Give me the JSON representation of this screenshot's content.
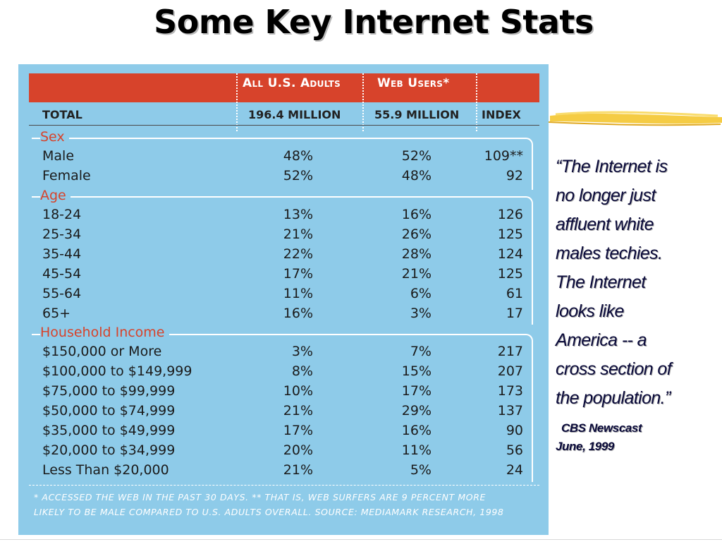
{
  "title": "Some Key Internet Stats",
  "table": {
    "col_headers": [
      "All U.S. Adults",
      "Web Users*"
    ],
    "total": {
      "label": "TOTAL",
      "c1": "196.4 MILLION",
      "c2": "55.9 MILLION",
      "c3": "INDEX"
    },
    "sections": {
      "sex": {
        "label": "Sex",
        "rows": [
          {
            "label": "Male",
            "c1": "48%",
            "c2": "52%",
            "c3": "109**"
          },
          {
            "label": "Female",
            "c1": "52%",
            "c2": "48%",
            "c3": "92"
          }
        ]
      },
      "age": {
        "label": "Age",
        "rows": [
          {
            "label": "18-24",
            "c1": "13%",
            "c2": "16%",
            "c3": "126"
          },
          {
            "label": "25-34",
            "c1": "21%",
            "c2": "26%",
            "c3": "125"
          },
          {
            "label": "35-44",
            "c1": "22%",
            "c2": "28%",
            "c3": "124"
          },
          {
            "label": "45-54",
            "c1": "17%",
            "c2": "21%",
            "c3": "125"
          },
          {
            "label": "55-64",
            "c1": "11%",
            "c2": "6%",
            "c3": "61"
          },
          {
            "label": "65+",
            "c1": "16%",
            "c2": "3%",
            "c3": "17"
          }
        ]
      },
      "income": {
        "label": "Household Income",
        "rows": [
          {
            "label": "$150,000 or More",
            "c1": "3%",
            "c2": "7%",
            "c3": "217"
          },
          {
            "label": "$100,000 to $149,999",
            "c1": "8%",
            "c2": "15%",
            "c3": "207"
          },
          {
            "label": "$75,000 to $99,999",
            "c1": "10%",
            "c2": "17%",
            "c3": "173"
          },
          {
            "label": "$50,000 to $74,999",
            "c1": "21%",
            "c2": "29%",
            "c3": "137"
          },
          {
            "label": "$35,000 to $49,999",
            "c1": "17%",
            "c2": "16%",
            "c3": "90"
          },
          {
            "label": "$20,000 to $34,999",
            "c1": "20%",
            "c2": "11%",
            "c3": "56"
          },
          {
            "label": "Less Than $20,000",
            "c1": "21%",
            "c2": "5%",
            "c3": "24"
          }
        ]
      }
    },
    "footnote": [
      "* ACCESSED THE WEB IN THE PAST 30 DAYS.  ** THAT IS, WEB SURFERS ARE 9 PERCENT MORE",
      "LIKELY TO BE MALE COMPARED TO U.S. ADULTS OVERALL. SOURCE: MEDIAMARK RESEARCH, 1998"
    ]
  },
  "quote": {
    "lines": [
      "“The Internet is",
      "no longer just",
      "affluent white",
      "males techies.",
      "The Internet",
      "looks like",
      "America -- a",
      "cross section of",
      "the population.”"
    ],
    "source_line1": "CBS Newscast",
    "source_line2": "June, 1999"
  },
  "colors": {
    "table_bg": "#8ecbe9",
    "header_red": "#d7432b",
    "quote_text": "#0a0a3a",
    "highlight_yellow": "#f4c630"
  }
}
